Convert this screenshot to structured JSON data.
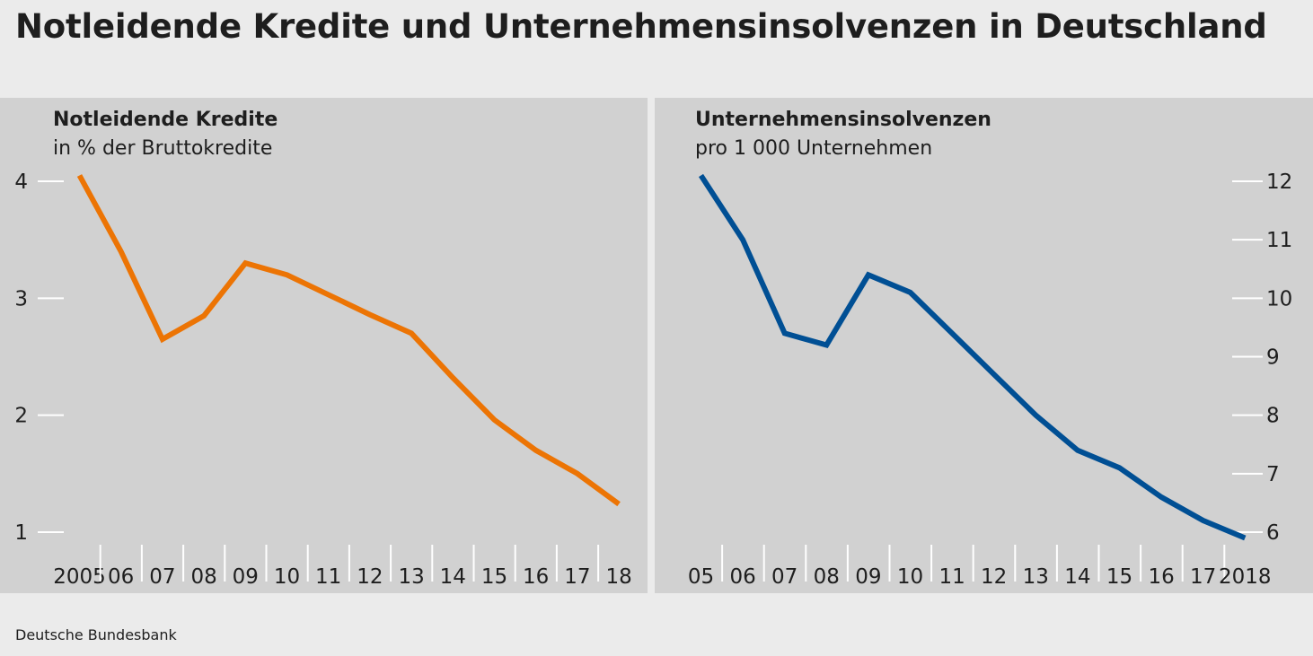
{
  "title": "Notleidende Kredite und Unternehmensinsolvenzen in Deutschland",
  "source": "Deutsche Bundesbank",
  "chart_data": [
    {
      "type": "line",
      "title": "Notleidende Kredite",
      "subtitle": "in % der Bruttokredite",
      "categories": [
        "2005",
        "06",
        "07",
        "08",
        "09",
        "10",
        "11",
        "12",
        "13",
        "14",
        "15",
        "16",
        "17",
        "18"
      ],
      "y_ticks": [
        "1",
        "2",
        "3",
        "4"
      ],
      "ylim": [
        1,
        4
      ],
      "y_axis_side": "left",
      "color": "#ec7404",
      "series": [
        {
          "values": [
            4.05,
            3.4,
            2.65,
            2.85,
            3.3,
            3.2,
            3.03,
            2.86,
            2.7,
            2.32,
            1.96,
            1.7,
            1.5,
            1.24
          ]
        }
      ]
    },
    {
      "type": "line",
      "title": "Unternehmensinsolvenzen",
      "subtitle": "pro 1 000 Unternehmen",
      "categories": [
        "05",
        "06",
        "07",
        "08",
        "09",
        "10",
        "11",
        "12",
        "13",
        "14",
        "15",
        "16",
        "17",
        "2018"
      ],
      "y_ticks": [
        "6",
        "7",
        "8",
        "9",
        "10",
        "11",
        "12"
      ],
      "ylim": [
        6,
        12
      ],
      "y_axis_side": "right",
      "color": "#004f94",
      "series": [
        {
          "values": [
            12.1,
            11.0,
            9.4,
            9.2,
            10.4,
            10.1,
            9.4,
            8.7,
            8.0,
            7.4,
            7.1,
            6.6,
            6.2,
            5.9
          ]
        }
      ]
    }
  ]
}
